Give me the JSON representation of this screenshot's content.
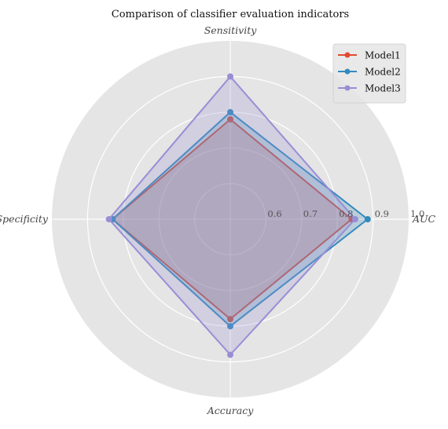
{
  "chart_data": {
    "type": "radar",
    "title": "Comparison of classifier evaluation indicators",
    "axes": [
      "Sensitivity",
      "AUC",
      "Accuracy",
      "Specificity"
    ],
    "rlim": [
      0.5,
      1.0
    ],
    "rticks": [
      "0.6",
      "0.7",
      "0.8",
      "0.9",
      "1.0"
    ],
    "rtick_values": [
      0.6,
      0.7,
      0.8,
      0.9,
      1.0
    ],
    "grid": true,
    "legend_position": "top-right",
    "series": [
      {
        "name": "Model1",
        "values": [
          0.78,
          0.84,
          0.78,
          0.83
        ],
        "color": "#E24A33"
      },
      {
        "name": "Model2",
        "values": [
          0.8,
          0.885,
          0.8,
          0.83
        ],
        "color": "#348ABD"
      },
      {
        "name": "Model3",
        "values": [
          0.9,
          0.85,
          0.88,
          0.84
        ],
        "color": "#988ED5"
      }
    ]
  }
}
